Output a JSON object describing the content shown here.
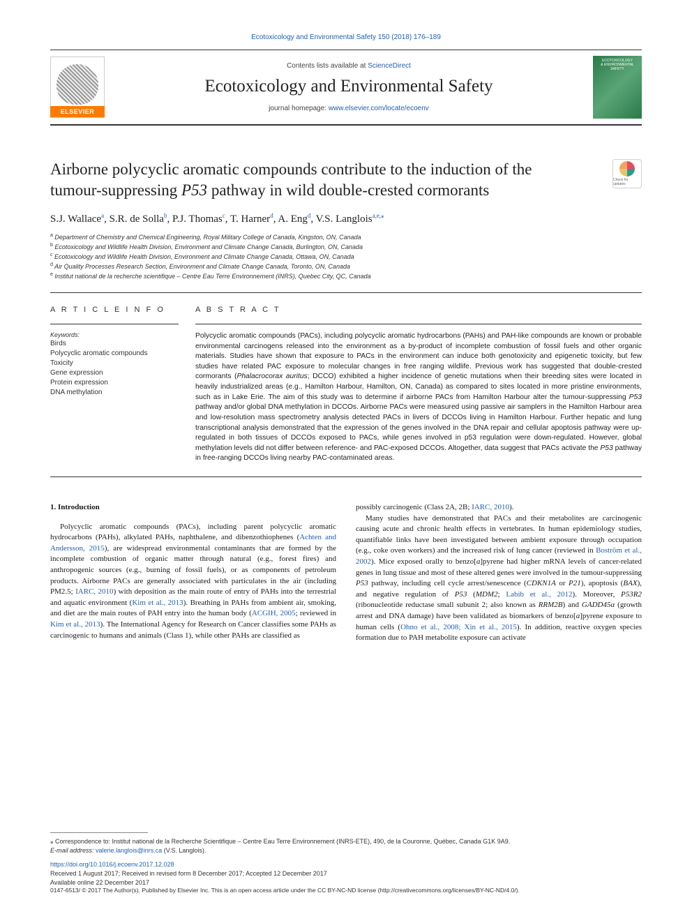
{
  "citation": {
    "text": "Ecotoxicology and Environmental Safety 150 (2018) 176–189",
    "color": "#2060b0",
    "fontsize": 10
  },
  "header": {
    "contents_prefix": "Contents lists available at ",
    "contents_link": "ScienceDirect",
    "journal_name": "Ecotoxicology and Environmental Safety",
    "homepage_prefix": "journal homepage: ",
    "homepage_link": "www.elsevier.com/locate/ecoenv",
    "elsevier_label": "ELSEVIER",
    "cover_text_1": "ECOTOXICOLOGY",
    "cover_text_2": "& ENVIRONMENTAL",
    "cover_text_3": "SAFETY"
  },
  "title": {
    "line1": "Airborne polycyclic aromatic compounds contribute to the induction of the",
    "line2_a": "tumour-suppressing ",
    "line2_italic": "P53",
    "line2_b": " pathway in wild double-crested cormorants",
    "fontsize": 23
  },
  "check_updates_label": "Check for updates",
  "authors": {
    "list": [
      {
        "name": "S.J. Wallace",
        "aff": "a"
      },
      {
        "name": "S.R. de Solla",
        "aff": "b"
      },
      {
        "name": "P.J. Thomas",
        "aff": "c"
      },
      {
        "name": "T. Harner",
        "aff": "d"
      },
      {
        "name": "A. Eng",
        "aff": "d"
      },
      {
        "name": "V.S. Langlois",
        "aff": "a,e,⁎"
      }
    ],
    "fontsize": 15
  },
  "affiliations": [
    {
      "sup": "a",
      "text": "Department of Chemistry and Chemical Engineering, Royal Military College of Canada, Kingston, ON, Canada"
    },
    {
      "sup": "b",
      "text": "Ecotoxicology and Wildlife Health Division, Environment and Climate Change Canada, Burlington, ON, Canada"
    },
    {
      "sup": "c",
      "text": "Ecotoxicology and Wildlife Health Division, Environment and Climate Change Canada, Ottawa, ON, Canada"
    },
    {
      "sup": "d",
      "text": "Air Quality Processes Research Section, Environment and Climate Change Canada, Toronto, ON, Canada"
    },
    {
      "sup": "e",
      "text": "Institut national de la recherche scientifique – Centre Eau Terre Environnement (INRS), Quebec City, QC, Canada"
    }
  ],
  "article_info_heading": "A R T I C L E  I N F O",
  "keywords_label": "Keywords:",
  "keywords": [
    "Birds",
    "Polycyclic aromatic compounds",
    "Toxicity",
    "Gene expression",
    "Protein expression",
    "DNA methylation"
  ],
  "abstract_heading": "A B S T R A C T",
  "abstract_text": "Polycyclic aromatic compounds (PACs), including polycyclic aromatic hydrocarbons (PAHs) and PAH-like compounds are known or probable environmental carcinogens released into the environment as a by-product of incomplete combustion of fossil fuels and other organic materials. Studies have shown that exposure to PACs in the environment can induce both genotoxicity and epigenetic toxicity, but few studies have related PAC exposure to molecular changes in free ranging wildlife. Previous work has suggested that double-crested cormorants (Phalacrocorax auritus; DCCO) exhibited a higher incidence of genetic mutations when their breeding sites were located in heavily industrialized areas (e.g., Hamilton Harbour, Hamilton, ON, Canada) as compared to sites located in more pristine environments, such as in Lake Erie. The aim of this study was to determine if airborne PACs from Hamilton Harbour alter the tumour-suppressing P53 pathway and/or global DNA methylation in DCCOs. Airborne PACs were measured using passive air samplers in the Hamilton Harbour area and low-resolution mass spectrometry analysis detected PACs in livers of DCCOs living in Hamilton Harbour. Further hepatic and lung transcriptional analysis demonstrated that the expression of the genes involved in the DNA repair and cellular apoptosis pathway were up-regulated in both tissues of DCCOs exposed to PACs, while genes involved in p53 regulation were down-regulated. However, global methylation levels did not differ between reference- and PAC-exposed DCCOs. Altogether, data suggest that PACs activate the P53 pathway in free-ranging DCCOs living nearby PAC-contaminated areas.",
  "intro_heading": "1. Introduction",
  "intro_col1": "Polycyclic aromatic compounds (PACs), including parent polycyclic aromatic hydrocarbons (PAHs), alkylated PAHs, naphthalene, and dibenzothiophenes (Achten and Andersson, 2015), are widespread environmental contaminants that are formed by the incomplete combustion of organic matter through natural (e.g., forest fires) and anthropogenic sources (e.g., burning of fossil fuels), or as components of petroleum products. Airborne PACs are generally associated with particulates in the air (including PM2.5; IARC, 2010) with deposition as the main route of entry of PAHs into the terrestrial and aquatic environment (Kim et al., 2013). Breathing in PAHs from ambient air, smoking, and diet are the main routes of PAH entry into the human body (ACGIH, 2005; reviewed in Kim et al., 2013). The International Agency for Research on Cancer classifies some PAHs as carcinogenic to humans and animals (Class 1), while other PAHs are classified as",
  "intro_col2_a": "possibly carcinogenic (Class 2A, 2B; IARC, 2010).",
  "intro_col2_b": "Many studies have demonstrated that PACs and their metabolites are carcinogenic causing acute and chronic health effects in vertebrates. In human epidemiology studies, quantifiable links have been investigated between ambient exposure through occupation (e.g., coke oven workers) and the increased risk of lung cancer (reviewed in Boström et al., 2002). Mice exposed orally to benzo[a]pyrene had higher mRNA levels of cancer-related genes in lung tissue and most of these altered genes were involved in the tumour-suppressing P53 pathway, including cell cycle arrest/senescence (CDKN1A or P21), apoptosis (BAX), and negative regulation of P53 (MDM2; Labib et al., 2012). Moreover, P53R2 (ribonucleotide reductase small subunit 2; also known as RRM2B) and GADD45α (growth arrest and DNA damage) have been validated as biomarkers of benzo[a]pyrene exposure to human cells (Ohno et al., 2008; Xin et al., 2015). In addition, reactive oxygen species formation due to PAH metabolite exposure can activate",
  "footer": {
    "correspondence": "⁎ Correspondence to: Institut national de la Recherche Scientifique – Centre Eau Terre Environnement (INRS-ETE), 490, de la Couronne, Québec, Canada G1K 9A9.",
    "email_label": "E-mail address: ",
    "email": "valerie.langlois@inrs.ca",
    "email_name": " (V.S. Langlois).",
    "doi": "https://doi.org/10.1016/j.ecoenv.2017.12.028",
    "dates": "Received 1 August 2017; Received in revised form 8 December 2017; Accepted 12 December 2017",
    "available": "Available online 22 December 2017",
    "copyright": "0147-6513/ © 2017 The Author(s). Published by Elsevier Inc. This is an open access article under the CC BY-NC-ND license (http://creativecommons.org/licenses/BY-NC-ND/4.0/)."
  },
  "colors": {
    "link": "#2060b0",
    "text": "#1a1a1a",
    "elsevier_orange": "#ff7a00",
    "cover_green": "#2a7a4a"
  }
}
